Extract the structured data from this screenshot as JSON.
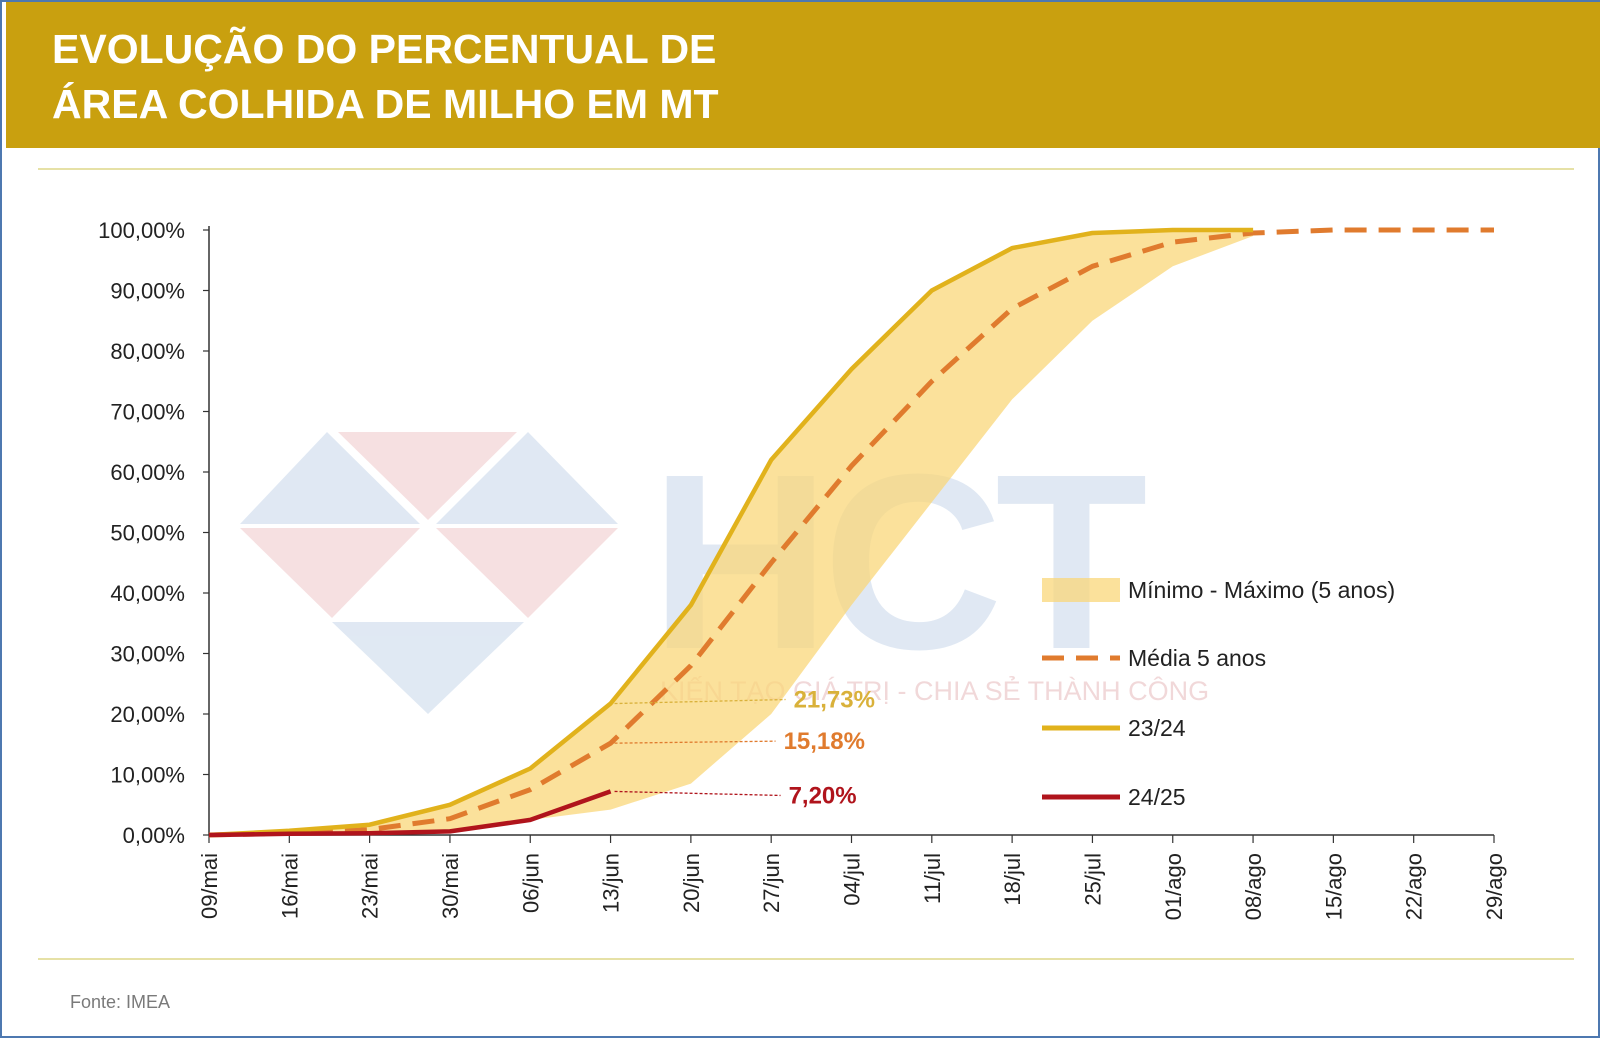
{
  "header": {
    "title_line1": "EVOLUÇÃO DO PERCENTUAL DE",
    "title_line2": "ÁREA COLHIDA DE MILHO EM MT"
  },
  "footer": {
    "source": "Fonte: IMEA"
  },
  "watermark": {
    "logo_text": "HCT",
    "tagline": "KIẾN TẠO GIÁ TRỊ - CHIA SẺ THÀNH CÔNG"
  },
  "colors": {
    "header_bg": "#c9a00f",
    "band": "#f9d77a",
    "media": "#e07b2e",
    "s2324": "#e1b21c",
    "s2425": "#b0141c",
    "label_2324": "#d9b13a",
    "label_media": "#e07b2e",
    "label_2425": "#b0141c"
  },
  "chart_data": {
    "type": "line",
    "title": "EVOLUÇÃO DO PERCENTUAL DE ÁREA COLHIDA DE MILHO EM MT",
    "x": [
      "09/mai",
      "16/mai",
      "23/mai",
      "30/mai",
      "06/jun",
      "13/jun",
      "20/jun",
      "27/jun",
      "04/jul",
      "11/jul",
      "18/jul",
      "25/jul",
      "01/ago",
      "08/ago",
      "15/ago",
      "22/ago",
      "29/ago"
    ],
    "yticks": [
      "0,00%",
      "10,00%",
      "20,00%",
      "30,00%",
      "40,00%",
      "50,00%",
      "60,00%",
      "70,00%",
      "80,00%",
      "90,00%",
      "100,00%"
    ],
    "ylim": [
      0,
      100
    ],
    "grid": false,
    "legend_position": "right",
    "series": [
      {
        "name": "Mínimo - Máximo (5 anos)",
        "kind": "band",
        "upper": [
          0,
          0.7,
          1.7,
          5.0,
          11.0,
          21.73,
          38,
          62,
          77,
          90,
          97,
          99.5,
          100,
          100,
          null,
          null,
          null
        ],
        "lower": [
          0,
          0.1,
          0.3,
          0.8,
          2.5,
          4.2,
          8.5,
          20,
          38,
          55,
          72,
          85,
          94,
          99,
          null,
          null,
          null
        ]
      },
      {
        "name": "Média 5 anos",
        "kind": "dashed",
        "values": [
          0,
          0.3,
          0.9,
          2.7,
          7.5,
          15.18,
          28,
          45,
          61,
          75,
          87,
          94,
          98,
          99.5,
          100,
          100,
          100
        ]
      },
      {
        "name": "23/24",
        "kind": "solid",
        "values": [
          0,
          0.7,
          1.7,
          5.0,
          11.0,
          21.73,
          38,
          62,
          77,
          90,
          97,
          99.5,
          100,
          100,
          null,
          null,
          null
        ]
      },
      {
        "name": "24/25",
        "kind": "solid",
        "values": [
          0,
          0.2,
          0.3,
          0.6,
          2.5,
          7.2,
          null,
          null,
          null,
          null,
          null,
          null,
          null,
          null,
          null,
          null,
          null
        ]
      }
    ],
    "annotations": [
      {
        "text": "21,73%",
        "series": "23/24",
        "x": "13/jun",
        "y": 21.73
      },
      {
        "text": "15,18%",
        "series": "Média 5 anos",
        "x": "13/jun",
        "y": 15.18
      },
      {
        "text": "7,20%",
        "series": "24/25",
        "x": "13/jun",
        "y": 7.2
      }
    ]
  }
}
